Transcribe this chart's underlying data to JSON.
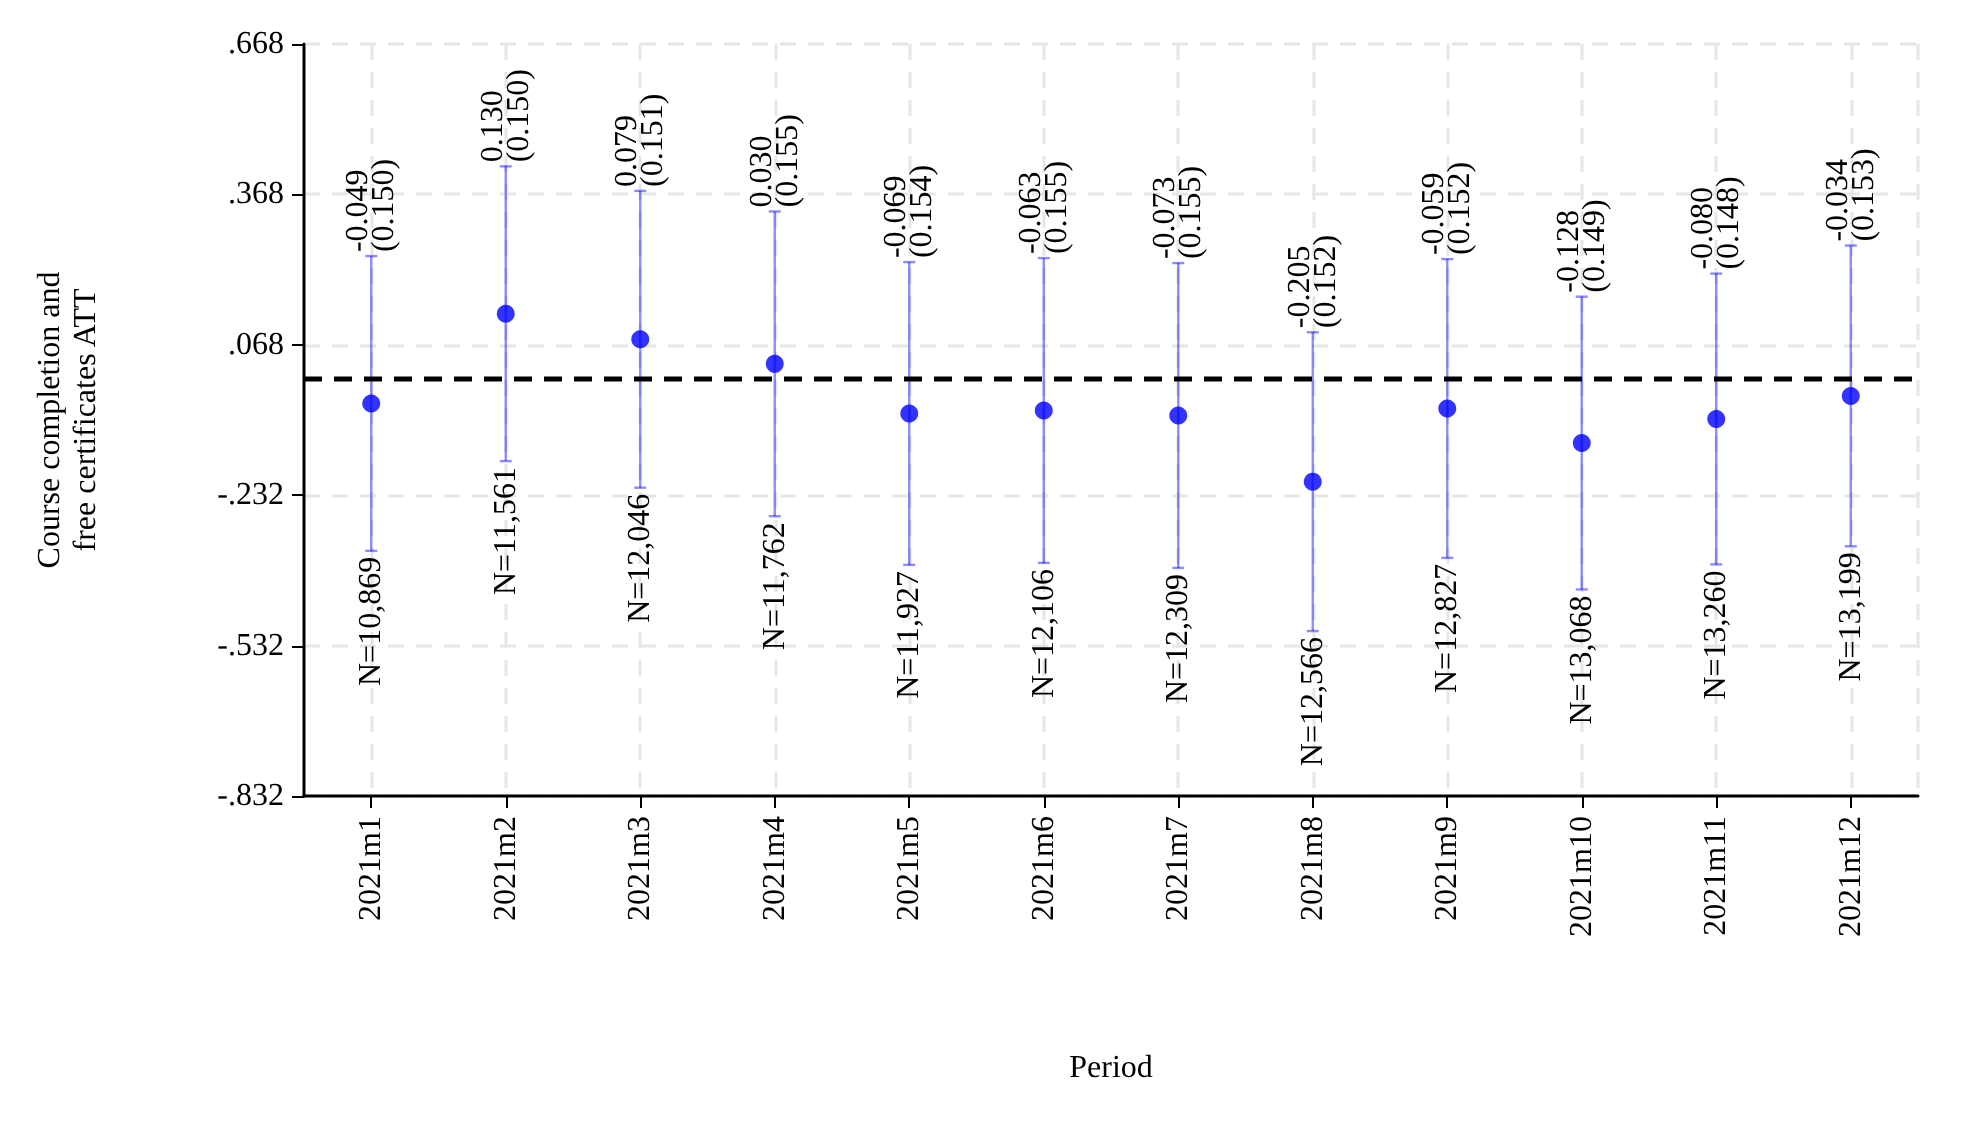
{
  "chart_data": {
    "type": "scatter",
    "xlabel": "Period",
    "ylabel": "Course completion and\nfree certificates ATT",
    "categories": [
      "2021m1",
      "2021m2",
      "2021m3",
      "2021m4",
      "2021m5",
      "2021m6",
      "2021m7",
      "2021m8",
      "2021m9",
      "2021m10",
      "2021m11",
      "2021m12"
    ],
    "series": [
      {
        "color": "#0000ff",
        "values": [
          -0.049,
          0.13,
          0.079,
          0.03,
          -0.069,
          -0.063,
          -0.073,
          -0.205,
          -0.059,
          -0.128,
          -0.08,
          -0.034
        ],
        "errors": [
          0.294,
          0.294,
          0.296,
          0.304,
          0.302,
          0.304,
          0.304,
          0.298,
          0.298,
          0.292,
          0.29,
          0.3
        ]
      }
    ],
    "annotations": [
      {
        "text": "-0.049\n(0.150)",
        "x": "2021m1",
        "y": 0.245
      },
      {
        "text": "0.130\n(0.150)",
        "x": "2021m2",
        "y": 0.424
      },
      {
        "text": "0.079\n(0.151)",
        "x": "2021m3",
        "y": 0.375
      },
      {
        "text": "0.030\n(0.155)",
        "x": "2021m4",
        "y": 0.334
      },
      {
        "text": "-0.069\n(0.154)",
        "x": "2021m5",
        "y": 0.233
      },
      {
        "text": "-0.063\n(0.155)",
        "x": "2021m6",
        "y": 0.241
      },
      {
        "text": "-0.073\n(0.155)",
        "x": "2021m7",
        "y": 0.231
      },
      {
        "text": "-0.205\n(0.152)",
        "x": "2021m8",
        "y": 0.093
      },
      {
        "text": "-0.059\n(0.152)",
        "x": "2021m9",
        "y": 0.239
      },
      {
        "text": "-0.128\n(0.149)",
        "x": "2021m10",
        "y": 0.164
      },
      {
        "text": "-0.080\n(0.148)",
        "x": "2021m11",
        "y": 0.21
      },
      {
        "text": "-0.034\n(0.153)",
        "x": "2021m12",
        "y": 0.266
      },
      {
        "text": "N=10,869",
        "x": "2021m1",
        "y": -0.343
      },
      {
        "text": "N=11,561",
        "x": "2021m2",
        "y": -0.164
      },
      {
        "text": "N=12,046",
        "x": "2021m3",
        "y": -0.217
      },
      {
        "text": "N=11,762",
        "x": "2021m4",
        "y": -0.274
      },
      {
        "text": "N=11,927",
        "x": "2021m5",
        "y": -0.371
      },
      {
        "text": "N=12,106",
        "x": "2021m6",
        "y": -0.367
      },
      {
        "text": "N=12,309",
        "x": "2021m7",
        "y": -0.377
      },
      {
        "text": "N=12,566",
        "x": "2021m8",
        "y": -0.503
      },
      {
        "text": "N=12,827",
        "x": "2021m9",
        "y": -0.357
      },
      {
        "text": "N=13,068",
        "x": "2021m10",
        "y": -0.42
      },
      {
        "text": "N=13,260",
        "x": "2021m11",
        "y": -0.37
      },
      {
        "text": "N=13,199",
        "x": "2021m12",
        "y": -0.334
      }
    ],
    "ylim": [
      -0.832,
      0.668
    ],
    "yticks": [
      {
        "value": -0.832,
        "label": "-.832"
      },
      {
        "value": -0.532,
        "label": "-.532"
      },
      {
        "value": -0.232,
        "label": "-.232"
      },
      {
        "value": 0.068,
        "label": ".068"
      },
      {
        "value": 0.368,
        "label": ".368"
      },
      {
        "value": 0.668,
        "label": ".668"
      }
    ],
    "ref_lines": [
      {
        "axis": "y",
        "value": 0,
        "color": "#000000",
        "line_style": "dashed"
      }
    ],
    "grid": true,
    "marker": "circle"
  }
}
